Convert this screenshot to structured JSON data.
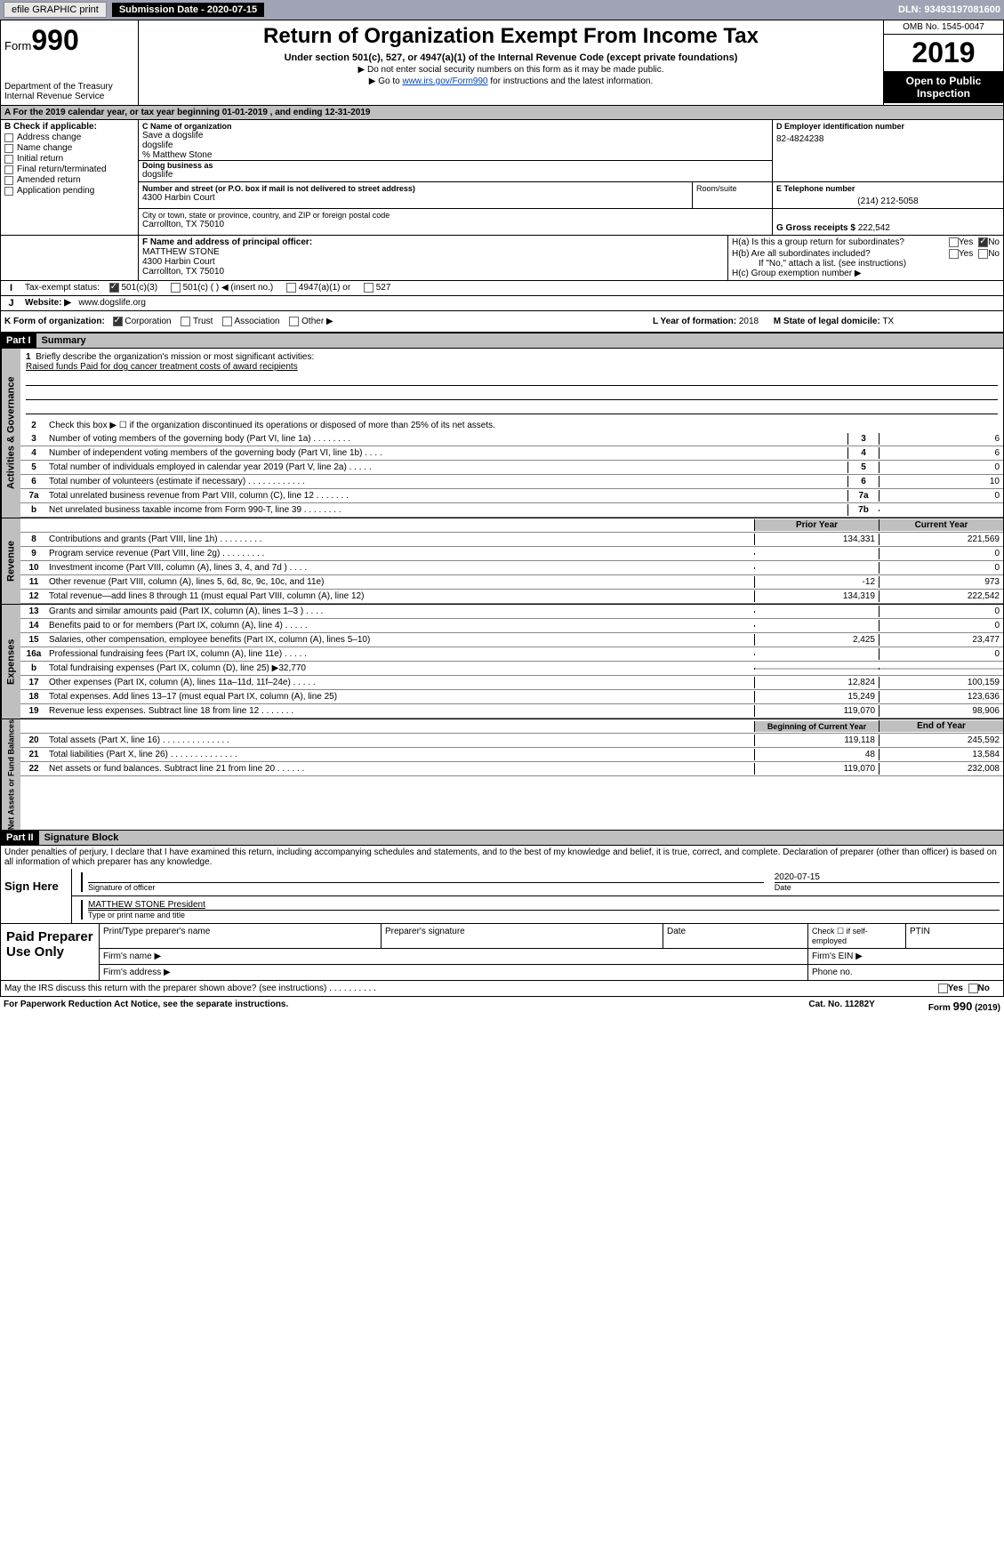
{
  "topbar": {
    "efile_label": "efile GRAPHIC print",
    "submission_label": "Submission Date - 2020-07-15",
    "dln": "DLN: 93493197081600"
  },
  "formhead": {
    "form_prefix": "Form",
    "form_number": "990",
    "dept1": "Department of the Treasury",
    "dept2": "Internal Revenue Service",
    "title": "Return of Organization Exempt From Income Tax",
    "subtitle": "Under section 501(c), 527, or 4947(a)(1) of the Internal Revenue Code (except private foundations)",
    "note1": "▶ Do not enter social security numbers on this form as it may be made public.",
    "note2_pre": "▶ Go to ",
    "note2_link": "www.irs.gov/Form990",
    "note2_post": " for instructions and the latest information.",
    "omb": "OMB No. 1545-0047",
    "year": "2019",
    "open": "Open to Public Inspection"
  },
  "row_a": "A   For the 2019 calendar year, or tax year beginning 01-01-2019        , and ending 12-31-2019",
  "col_b": {
    "hdr": "B Check if applicable:",
    "items": [
      "Address change",
      "Name change",
      "Initial return",
      "Final return/terminated",
      "Amended return",
      "Application pending"
    ]
  },
  "col_c": {
    "name_lbl": "C Name of organization",
    "line1": "Save a dogslife",
    "line2": "dogslife",
    "care_of": "% Matthew Stone",
    "dba_lbl": "Doing business as",
    "dba": "dogslife",
    "addr_lbl": "Number and street (or P.O. box if mail is not delivered to street address)",
    "addr": "4300 Harbin Court",
    "room_lbl": "Room/suite",
    "city_lbl": "City or town, state or province, country, and ZIP or foreign postal code",
    "city": "Carrollton, TX  75010"
  },
  "col_d": {
    "ein_lbl": "D Employer identification number",
    "ein": "82-4824238",
    "tel_lbl": "E Telephone number",
    "tel": "(214) 212-5058",
    "gross_lbl": "G Gross receipts $",
    "gross": "222,542"
  },
  "row_f": {
    "lbl": "F Name and address of principal officer:",
    "name": "MATTHEW STONE",
    "addr": "4300 Harbin Court",
    "city": "Carrollton, TX  75010"
  },
  "row_h": {
    "ha": "H(a)   Is this a group return for subordinates?",
    "hb": "H(b)   Are all subordinates included?",
    "hb_note": "If \"No,\" attach a list. (see instructions)",
    "hc": "H(c)   Group exemption number ▶",
    "yes": "Yes",
    "no": "No"
  },
  "row_i": {
    "lbl": "Tax-exempt status:",
    "opts": [
      "501(c)(3)",
      "501(c) (  ) ◀ (insert no.)",
      "4947(a)(1) or",
      "527"
    ]
  },
  "row_j": {
    "lbl": "Website: ▶",
    "val": "www.dogslife.org"
  },
  "row_k": {
    "lbl": "K Form of organization:",
    "opts": [
      "Corporation",
      "Trust",
      "Association",
      "Other ▶"
    ],
    "l_lbl": "L Year of formation:",
    "l_val": "2018",
    "m_lbl": "M State of legal domicile:",
    "m_val": "TX"
  },
  "part1": {
    "hdr": "Part I",
    "title": "Summary"
  },
  "summary": {
    "q1": "Briefly describe the organization's mission or most significant activities:",
    "q1_ans": "Raised funds Paid for dog cancer treatment costs of award recipients",
    "q2": "Check this box ▶ ☐ if the organization discontinued its operations or disposed of more than 25% of its net assets.",
    "lines_top": [
      {
        "n": "3",
        "t": "Number of voting members of the governing body (Part VI, line 1a)   .    .    .    .    .    .    .    .",
        "box": "3",
        "v": "6"
      },
      {
        "n": "4",
        "t": "Number of independent voting members of the governing body (Part VI, line 1b)   .    .    .    .",
        "box": "4",
        "v": "6"
      },
      {
        "n": "5",
        "t": "Total number of individuals employed in calendar year 2019 (Part V, line 2a)   .    .    .    .    .",
        "box": "5",
        "v": "0"
      },
      {
        "n": "6",
        "t": "Total number of volunteers (estimate if necessary)   .    .    .    .    .    .    .    .    .    .    .    .",
        "box": "6",
        "v": "10"
      },
      {
        "n": "7a",
        "t": "Total unrelated business revenue from Part VIII, column (C), line 12   .    .    .    .    .    .    .",
        "box": "7a",
        "v": "0"
      },
      {
        "n": "b",
        "t": "Net unrelated business taxable income from Form 990-T, line 39   .    .    .    .    .    .    .    .",
        "box": "7b",
        "v": ""
      }
    ],
    "col_hdr_prior": "Prior Year",
    "col_hdr_curr": "Current Year",
    "revenue": [
      {
        "n": "8",
        "t": "Contributions and grants (Part VIII, line 1h)   .    .    .    .    .    .    .    .    .",
        "p": "134,331",
        "c": "221,569"
      },
      {
        "n": "9",
        "t": "Program service revenue (Part VIII, line 2g)   .    .    .    .    .    .    .    .    .",
        "p": "",
        "c": "0"
      },
      {
        "n": "10",
        "t": "Investment income (Part VIII, column (A), lines 3, 4, and 7d )   .    .    .    .",
        "p": "",
        "c": "0"
      },
      {
        "n": "11",
        "t": "Other revenue (Part VIII, column (A), lines 5, 6d, 8c, 9c, 10c, and 11e)",
        "p": "-12",
        "c": "973"
      },
      {
        "n": "12",
        "t": "Total revenue—add lines 8 through 11 (must equal Part VIII, column (A), line 12)",
        "p": "134,319",
        "c": "222,542"
      }
    ],
    "expenses": [
      {
        "n": "13",
        "t": "Grants and similar amounts paid (Part IX, column (A), lines 1–3 )   .    .    .    .",
        "p": "",
        "c": "0"
      },
      {
        "n": "14",
        "t": "Benefits paid to or for members (Part IX, column (A), line 4)   .    .    .    .    .",
        "p": "",
        "c": "0"
      },
      {
        "n": "15",
        "t": "Salaries, other compensation, employee benefits (Part IX, column (A), lines 5–10)",
        "p": "2,425",
        "c": "23,477"
      },
      {
        "n": "16a",
        "t": "Professional fundraising fees (Part IX, column (A), line 11e)   .    .    .    .    .",
        "p": "",
        "c": "0"
      },
      {
        "n": "b",
        "t": "Total fundraising expenses (Part IX, column (D), line 25) ▶32,770",
        "p": "shaded",
        "c": "shaded"
      },
      {
        "n": "17",
        "t": "Other expenses (Part IX, column (A), lines 11a–11d, 11f–24e)   .    .    .    .    .",
        "p": "12,824",
        "c": "100,159"
      },
      {
        "n": "18",
        "t": "Total expenses. Add lines 13–17 (must equal Part IX, column (A), line 25)",
        "p": "15,249",
        "c": "123,636"
      },
      {
        "n": "19",
        "t": "Revenue less expenses. Subtract line 18 from line 12   .    .    .    .    .    .    .",
        "p": "119,070",
        "c": "98,906"
      }
    ],
    "col_hdr_beg": "Beginning of Current Year",
    "col_hdr_end": "End of Year",
    "netassets": [
      {
        "n": "20",
        "t": "Total assets (Part X, line 16)   .    .    .    .    .    .    .    .    .    .    .    .    .    .",
        "p": "119,118",
        "c": "245,592"
      },
      {
        "n": "21",
        "t": "Total liabilities (Part X, line 26)   .    .    .    .    .    .    .    .    .    .    .    .    .    .",
        "p": "48",
        "c": "13,584"
      },
      {
        "n": "22",
        "t": "Net assets or fund balances. Subtract line 21 from line 20   .    .    .    .    .    .",
        "p": "119,070",
        "c": "232,008"
      }
    ]
  },
  "sidetabs": {
    "gov": "Activities & Governance",
    "rev": "Revenue",
    "exp": "Expenses",
    "net": "Net Assets or Fund Balances"
  },
  "part2": {
    "hdr": "Part II",
    "title": "Signature Block"
  },
  "sig": {
    "perjury": "Under penalties of perjury, I declare that I have examined this return, including accompanying schedules and statements, and to the best of my knowledge and belief, it is true, correct, and complete. Declaration of preparer (other than officer) is based on all information of which preparer has any knowledge.",
    "sign_here": "Sign Here",
    "date": "2020-07-15",
    "sig_officer": "Signature of officer",
    "date_lbl": "Date",
    "officer_name": "MATTHEW STONE  President",
    "type_name": "Type or print name and title"
  },
  "paid": {
    "side": "Paid Preparer Use Only",
    "h1": "Print/Type preparer's name",
    "h2": "Preparer's signature",
    "h3": "Date",
    "h4": "Check ☐ if self-employed",
    "h5": "PTIN",
    "firm_name": "Firm's name    ▶",
    "firm_ein": "Firm's EIN ▶",
    "firm_addr": "Firm's address ▶",
    "phone": "Phone no."
  },
  "footer": {
    "irs_q": "May the IRS discuss this return with the preparer shown above? (see instructions)   .    .    .    .    .    .    .    .    .    .",
    "yes": "Yes",
    "no": "No",
    "paperwork": "For Paperwork Reduction Act Notice, see the separate instructions.",
    "cat": "Cat. No. 11282Y",
    "form": "Form 990 (2019)"
  }
}
